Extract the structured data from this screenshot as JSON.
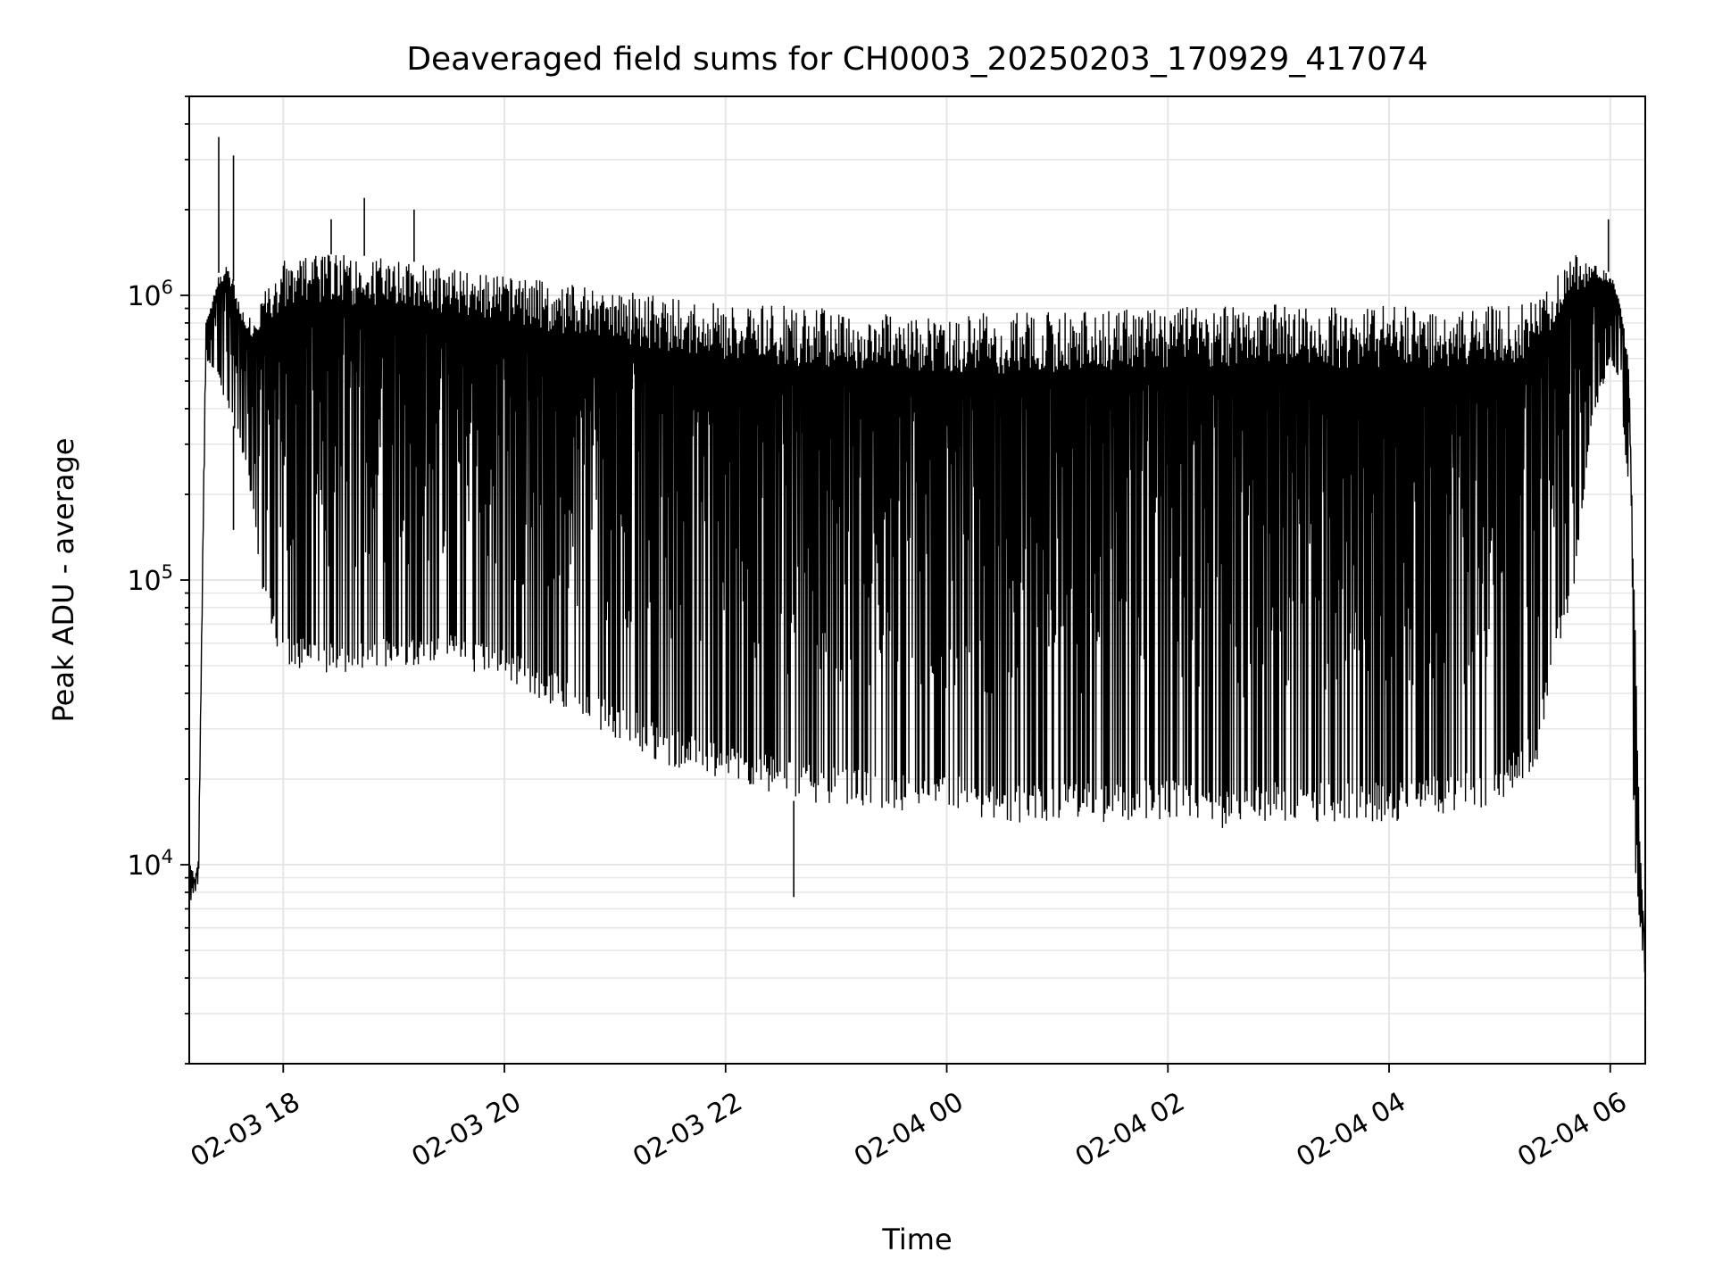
{
  "chart_data": {
    "type": "line",
    "title": "Deaveraged field sums for CH0003_20250203_170929_417074",
    "xlabel": "Time",
    "ylabel": "Peak ADU - average",
    "yscale": "log",
    "ylim": [
      2000,
      5000000
    ],
    "xlim": [
      "2025-02-03T17:09",
      "2025-02-04T06:19"
    ],
    "grid": true,
    "line_color": "#000000",
    "grid_color": "#e6e6e6",
    "x_ticks": [
      {
        "label": "02-03 18",
        "value": "2025-02-03T18:00"
      },
      {
        "label": "02-03 20",
        "value": "2025-02-03T20:00"
      },
      {
        "label": "02-03 22",
        "value": "2025-02-03T22:00"
      },
      {
        "label": "02-04 00",
        "value": "2025-02-04T00:00"
      },
      {
        "label": "02-04 02",
        "value": "2025-02-04T02:00"
      },
      {
        "label": "02-04 04",
        "value": "2025-02-04T04:00"
      },
      {
        "label": "02-04 06",
        "value": "2025-02-04T06:00"
      }
    ],
    "y_ticks": [
      {
        "base": "10",
        "exp": "4",
        "value": 10000
      },
      {
        "base": "10",
        "exp": "5",
        "value": 100000
      },
      {
        "base": "10",
        "exp": "6",
        "value": 1000000
      }
    ],
    "series": [
      {
        "upper_envelope": {
          "x": [
            "2025-02-03T17:09",
            "2025-02-03T17:12",
            "2025-02-03T17:14",
            "2025-02-03T17:18",
            "2025-02-03T17:25",
            "2025-02-03T17:30",
            "2025-02-03T17:40",
            "2025-02-03T18:00",
            "2025-02-03T18:30",
            "2025-02-03T19:00",
            "2025-02-03T19:30",
            "2025-02-03T20:00",
            "2025-02-03T20:30",
            "2025-02-03T21:00",
            "2025-02-03T21:30",
            "2025-02-03T22:00",
            "2025-02-03T22:30",
            "2025-02-03T23:00",
            "2025-02-03T23:30",
            "2025-02-04T00:00",
            "2025-02-04T00:30",
            "2025-02-04T01:00",
            "2025-02-04T01:30",
            "2025-02-04T02:00",
            "2025-02-04T02:30",
            "2025-02-04T03:00",
            "2025-02-04T03:30",
            "2025-02-04T04:00",
            "2025-02-04T04:30",
            "2025-02-04T05:00",
            "2025-02-04T05:20",
            "2025-02-04T05:40",
            "2025-02-04T06:00",
            "2025-02-04T06:05",
            "2025-02-04T06:10",
            "2025-02-04T06:13",
            "2025-02-04T06:16",
            "2025-02-04T06:19"
          ],
          "y": [
            10500,
            9000,
            10500,
            800000,
            1200000,
            1300000,
            800000,
            1350000,
            1400000,
            1350000,
            1250000,
            1200000,
            1100000,
            1050000,
            980000,
            950000,
            920000,
            900000,
            880000,
            860000,
            870000,
            880000,
            900000,
            920000,
            930000,
            930000,
            920000,
            920000,
            900000,
            920000,
            950000,
            1400000,
            1200000,
            1000000,
            600000,
            100000,
            12000,
            5000
          ]
        },
        "lower_envelope": {
          "x": [
            "2025-02-03T17:09",
            "2025-02-03T17:12",
            "2025-02-03T17:14",
            "2025-02-03T17:18",
            "2025-02-03T17:25",
            "2025-02-03T17:30",
            "2025-02-03T17:40",
            "2025-02-03T17:50",
            "2025-02-03T18:00",
            "2025-02-03T18:30",
            "2025-02-03T19:00",
            "2025-02-03T19:30",
            "2025-02-03T20:00",
            "2025-02-03T20:30",
            "2025-02-03T21:00",
            "2025-02-03T21:30",
            "2025-02-03T22:00",
            "2025-02-03T22:30",
            "2025-02-03T23:00",
            "2025-02-03T23:30",
            "2025-02-04T00:00",
            "2025-02-04T00:30",
            "2025-02-04T01:00",
            "2025-02-04T01:30",
            "2025-02-04T02:00",
            "2025-02-04T02:30",
            "2025-02-04T03:00",
            "2025-02-04T03:30",
            "2025-02-04T04:00",
            "2025-02-04T04:30",
            "2025-02-04T05:00",
            "2025-02-04T05:20",
            "2025-02-04T05:30",
            "2025-02-04T05:40",
            "2025-02-04T05:50",
            "2025-02-04T06:00",
            "2025-02-04T06:05",
            "2025-02-04T06:10",
            "2025-02-04T06:13",
            "2025-02-04T06:16",
            "2025-02-04T06:19"
          ],
          "y": [
            7500,
            7000,
            8000,
            600000,
            500000,
            400000,
            250000,
            80000,
            50000,
            45000,
            50000,
            50000,
            45000,
            35000,
            28000,
            22000,
            20000,
            17000,
            16000,
            15000,
            15000,
            14000,
            14000,
            14000,
            14500,
            13000,
            14000,
            14000,
            14000,
            15000,
            16000,
            22000,
            50000,
            90000,
            350000,
            600000,
            500000,
            200000,
            10000,
            6000,
            4000
          ]
        },
        "spikes": [
          {
            "x": "2025-02-03T17:25",
            "y": 3600000
          },
          {
            "x": "2025-02-03T17:33",
            "y": 3100000
          },
          {
            "x": "2025-02-03T17:33",
            "y": 150000
          },
          {
            "x": "2025-02-03T18:26",
            "y": 1850000
          },
          {
            "x": "2025-02-03T18:44",
            "y": 2200000
          },
          {
            "x": "2025-02-03T19:11",
            "y": 2000000
          },
          {
            "x": "2025-02-03T22:37",
            "y": 7700
          },
          {
            "x": "2025-02-04T05:59",
            "y": 1850000
          }
        ]
      }
    ]
  }
}
